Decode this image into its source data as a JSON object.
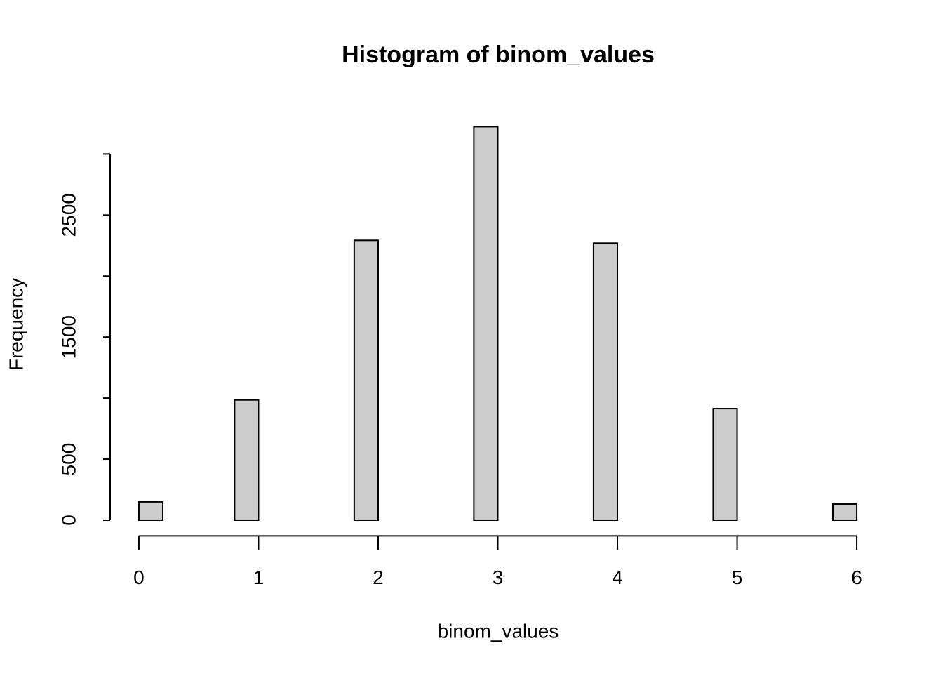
{
  "chart_data": {
    "type": "histogram",
    "title": "Histogram of binom_values",
    "x_label": "binom_values",
    "y_label": "Frequency",
    "bins": [
      0,
      0.2,
      0.4,
      0.6,
      0.8,
      1,
      1.2,
      1.4,
      1.6,
      1.8,
      2,
      2.2,
      2.4,
      2.6,
      2.8,
      3,
      3.2,
      3.4,
      3.6,
      3.8,
      4,
      4.2,
      4.4,
      4.6,
      4.8,
      5,
      5.2,
      5.4,
      5.6,
      5.8,
      6
    ],
    "counts": [
      150,
      0,
      0,
      0,
      985,
      0,
      0,
      0,
      0,
      2293,
      0,
      0,
      0,
      0,
      3224,
      0,
      0,
      0,
      0,
      2270,
      0,
      0,
      0,
      0,
      914,
      0,
      0,
      0,
      0,
      132
    ],
    "color": "#cccccc",
    "xlim": [
      -0.24,
      6.24
    ],
    "xticks": [
      0,
      1,
      2,
      3,
      4,
      5,
      6
    ],
    "ylim": [
      -129,
      3353
    ],
    "yticks": [
      0,
      500,
      {
        "value": 1000,
        "label": null
      },
      1500,
      {
        "value": 2000,
        "label": null
      },
      2500,
      {
        "value": 3000,
        "label": null
      }
    ]
  }
}
